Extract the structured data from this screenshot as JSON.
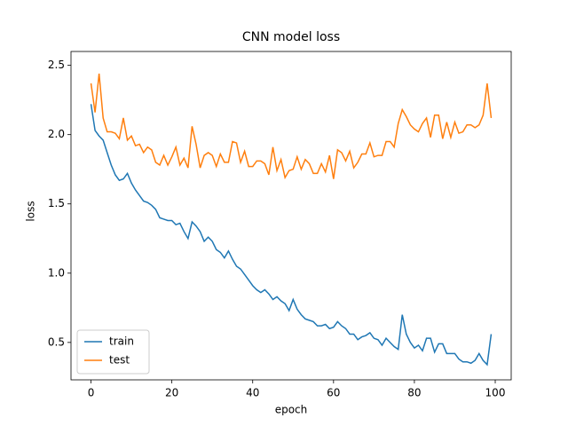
{
  "chart_data": {
    "type": "line",
    "title": "CNN model loss",
    "x_label": "epoch",
    "y_label": "loss",
    "x": [
      0,
      1,
      2,
      3,
      4,
      5,
      6,
      7,
      8,
      9,
      10,
      11,
      12,
      13,
      14,
      15,
      16,
      17,
      18,
      19,
      20,
      21,
      22,
      23,
      24,
      25,
      26,
      27,
      28,
      29,
      30,
      31,
      32,
      33,
      34,
      35,
      36,
      37,
      38,
      39,
      40,
      41,
      42,
      43,
      44,
      45,
      46,
      47,
      48,
      49,
      50,
      51,
      52,
      53,
      54,
      55,
      56,
      57,
      58,
      59,
      60,
      61,
      62,
      63,
      64,
      65,
      66,
      67,
      68,
      69,
      70,
      71,
      72,
      73,
      74,
      75,
      76,
      77,
      78,
      79,
      80,
      81,
      82,
      83,
      84,
      85,
      86,
      87,
      88,
      89,
      90,
      91,
      92,
      93,
      94,
      95,
      96,
      97,
      98,
      99
    ],
    "series": [
      {
        "name": "train",
        "color": "#1f77b4",
        "values": [
          2.22,
          2.03,
          1.99,
          1.96,
          1.87,
          1.78,
          1.71,
          1.67,
          1.68,
          1.72,
          1.65,
          1.6,
          1.56,
          1.52,
          1.51,
          1.49,
          1.46,
          1.4,
          1.39,
          1.38,
          1.38,
          1.35,
          1.36,
          1.3,
          1.25,
          1.37,
          1.34,
          1.3,
          1.23,
          1.26,
          1.23,
          1.17,
          1.15,
          1.11,
          1.16,
          1.1,
          1.05,
          1.03,
          0.99,
          0.95,
          0.91,
          0.88,
          0.86,
          0.88,
          0.85,
          0.81,
          0.83,
          0.8,
          0.78,
          0.73,
          0.81,
          0.74,
          0.7,
          0.67,
          0.66,
          0.65,
          0.62,
          0.62,
          0.63,
          0.6,
          0.61,
          0.65,
          0.62,
          0.6,
          0.56,
          0.56,
          0.52,
          0.54,
          0.55,
          0.57,
          0.53,
          0.52,
          0.48,
          0.53,
          0.5,
          0.47,
          0.45,
          0.7,
          0.56,
          0.5,
          0.46,
          0.48,
          0.44,
          0.53,
          0.53,
          0.43,
          0.49,
          0.49,
          0.42,
          0.42,
          0.42,
          0.38,
          0.36,
          0.36,
          0.35,
          0.37,
          0.42,
          0.37,
          0.34,
          0.56
        ]
      },
      {
        "name": "test",
        "color": "#ff7f0e",
        "values": [
          2.37,
          2.16,
          2.44,
          2.12,
          2.02,
          2.02,
          2.01,
          1.97,
          2.12,
          1.96,
          1.99,
          1.92,
          1.93,
          1.87,
          1.91,
          1.89,
          1.8,
          1.78,
          1.85,
          1.78,
          1.84,
          1.91,
          1.78,
          1.83,
          1.76,
          2.06,
          1.93,
          1.76,
          1.85,
          1.87,
          1.85,
          1.77,
          1.86,
          1.8,
          1.8,
          1.95,
          1.94,
          1.8,
          1.88,
          1.77,
          1.77,
          1.81,
          1.81,
          1.79,
          1.71,
          1.91,
          1.74,
          1.82,
          1.69,
          1.74,
          1.75,
          1.84,
          1.75,
          1.82,
          1.79,
          1.72,
          1.72,
          1.79,
          1.73,
          1.85,
          1.68,
          1.89,
          1.87,
          1.81,
          1.88,
          1.76,
          1.8,
          1.86,
          1.86,
          1.94,
          1.84,
          1.85,
          1.85,
          1.95,
          1.95,
          1.91,
          2.08,
          2.18,
          2.13,
          2.07,
          2.04,
          2.02,
          2.08,
          2.12,
          1.98,
          2.14,
          2.14,
          1.97,
          2.09,
          1.98,
          2.09,
          2.01,
          2.02,
          2.07,
          2.07,
          2.05,
          2.07,
          2.14,
          2.37,
          2.12
        ]
      }
    ],
    "xlim": [
      -4.95,
      103.95
    ],
    "xticks": [
      0,
      20,
      40,
      60,
      80,
      100
    ],
    "ylim": [
      0.23,
      2.6
    ],
    "yticks": [
      0.5,
      {
        "value": 1,
        "label": "1.0"
      },
      1.5,
      {
        "value": 2,
        "label": "2.0"
      },
      2.5
    ],
    "legend": "lower left",
    "grid": false
  }
}
